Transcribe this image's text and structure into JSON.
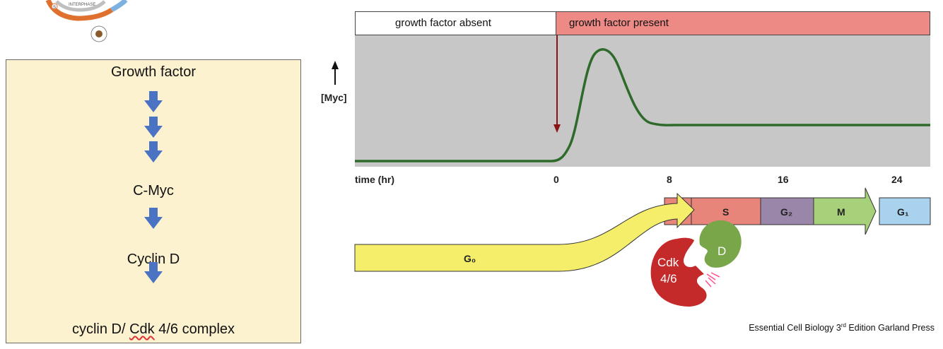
{
  "pathway": {
    "steps": [
      "Growth factor",
      "C-Myc",
      "Cyclin D"
    ],
    "complex_label_part1": "cyclin D/ ",
    "complex_label_part2": "Cdk",
    "complex_label_part3": " 4/6 complex"
  },
  "inset": {
    "cycle_label": "INTERPHASE",
    "phase_letter": "S"
  },
  "graph": {
    "left_bar_label": "growth factor absent",
    "right_bar_label": "growth factor present",
    "y_label": "[Myc]",
    "x_label": "time (hr)",
    "ticks": [
      "0",
      "8",
      "16",
      "24"
    ]
  },
  "phases": {
    "g0": "G₀",
    "s": "S",
    "g2": "G₂",
    "m": "M",
    "g1": "G₁"
  },
  "complex": {
    "cyclin": "D",
    "cdk_line1": "Cdk",
    "cdk_line2": "4/6"
  },
  "credit": {
    "prefix": "Essential Cell Biology 3",
    "superscript": "rd",
    "suffix": " Edition Garland Press"
  },
  "colors": {
    "box_fill": "#fcf2cf",
    "present": "#ee8a86",
    "curve": "#2e6b2b",
    "arrow_blue": "#4a73c4",
    "s_phase": "#e8857a",
    "g2_phase": "#9a86a8",
    "m_phase": "#a6d07a",
    "g1_phase": "#a9d2ee",
    "g0_arrow": "#f5ee6a"
  }
}
